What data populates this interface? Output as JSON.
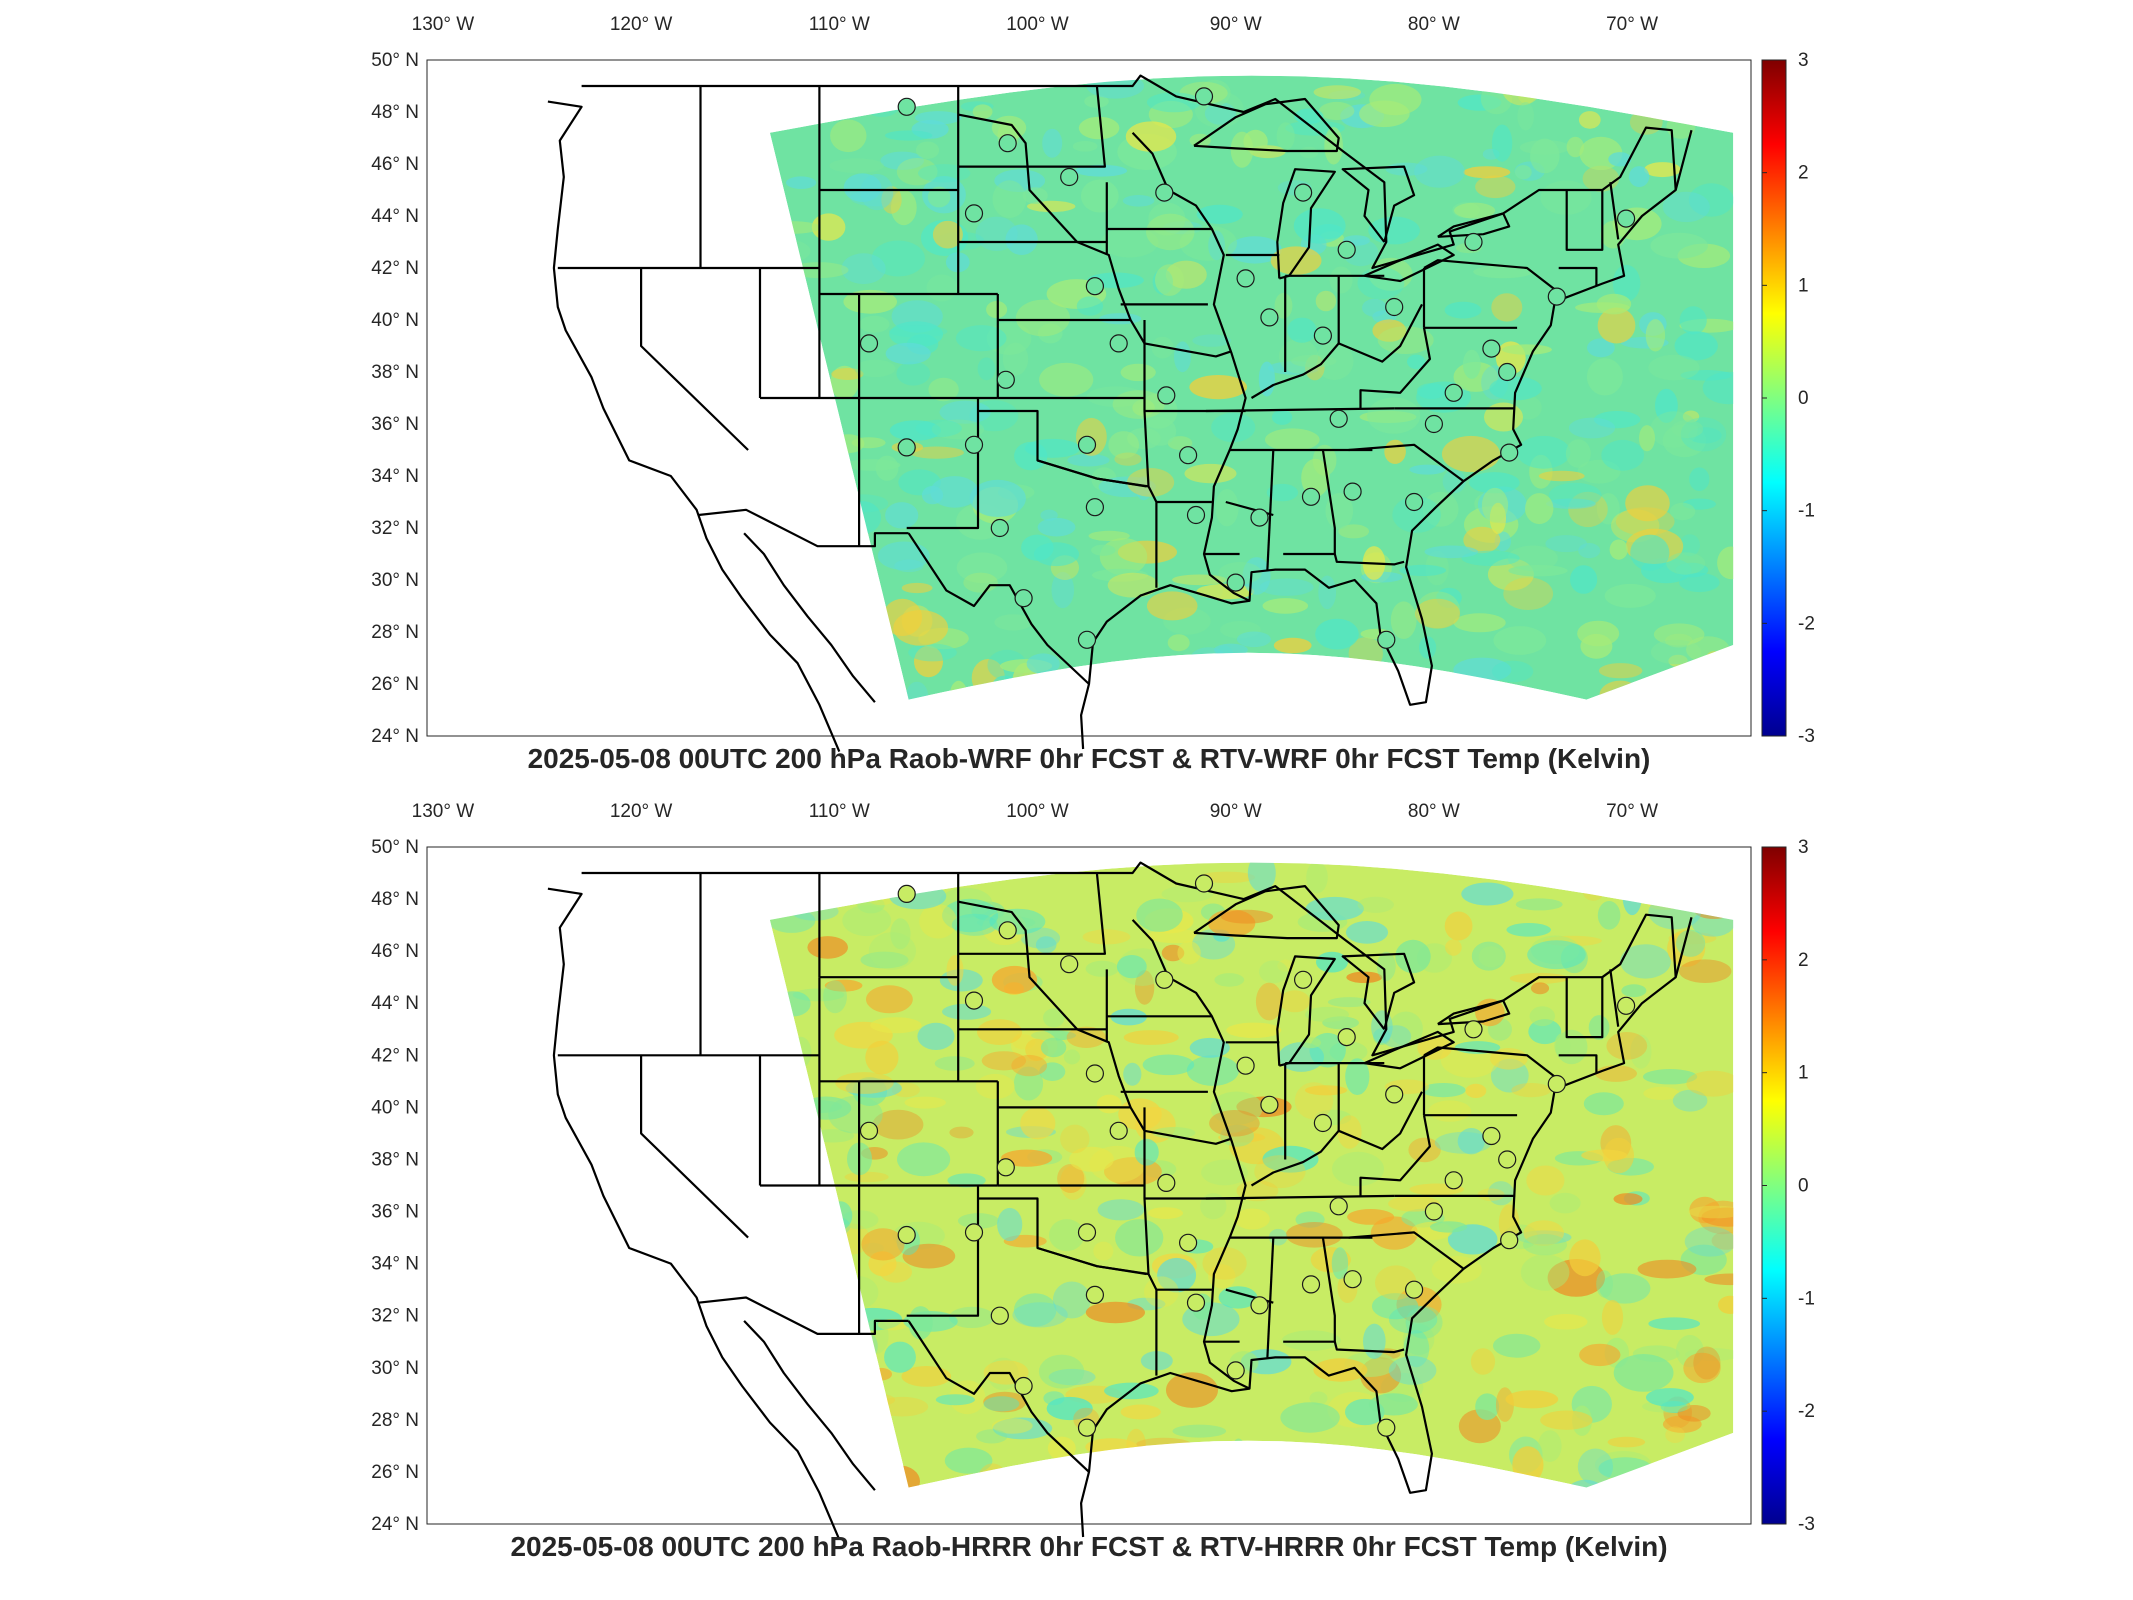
{
  "panels": [
    {
      "title": "2025-05-08 00UTC 200 hPa Raob-WRF 0hr FCST & RTV-WRF 0hr FCST Temp (Kelvin)",
      "field_tint": "#6fe3a2",
      "warm_patches": false
    },
    {
      "title": "2025-05-08 00UTC 200 hPa Raob-HRRR 0hr FCST & RTV-HRRR 0hr FCST Temp (Kelvin)",
      "field_tint": "#c8ec64",
      "warm_patches": true
    }
  ],
  "lon_labels": [
    "130° W",
    "120° W",
    "110° W",
    "100° W",
    "90° W",
    "80° W",
    "70° W"
  ],
  "lat_labels": [
    "50° N",
    "48° N",
    "46° N",
    "44° N",
    "42° N",
    "40° N",
    "38° N",
    "36° N",
    "34° N",
    "32° N",
    "30° N",
    "28° N",
    "26° N",
    "24° N"
  ],
  "colorbar": {
    "ticks": [
      "3",
      "2",
      "1",
      "0",
      "-1",
      "-2",
      "-3"
    ],
    "colormap": [
      "#7f0000",
      "#ff0000",
      "#ff8000",
      "#ffff00",
      "#80ff80",
      "#00ffff",
      "#0080ff",
      "#0000ff",
      "#00008f"
    ]
  },
  "stations": [
    [
      -106.6,
      48.2
    ],
    [
      -101.5,
      46.8
    ],
    [
      -98.4,
      45.5
    ],
    [
      -93.6,
      44.9
    ],
    [
      -91.6,
      48.6
    ],
    [
      -103.2,
      44.1
    ],
    [
      -97.1,
      41.3
    ],
    [
      -89.5,
      41.6
    ],
    [
      -88.3,
      40.1
    ],
    [
      -86.6,
      44.9
    ],
    [
      -84.4,
      42.7
    ],
    [
      -85.6,
      39.4
    ],
    [
      -82.0,
      40.5
    ],
    [
      -78.0,
      43.0
    ],
    [
      -70.3,
      43.9
    ],
    [
      -73.8,
      40.9
    ],
    [
      -77.1,
      38.9
    ],
    [
      -76.3,
      38.0
    ],
    [
      -79.0,
      37.2
    ],
    [
      -80.0,
      36.0
    ],
    [
      -84.8,
      36.2
    ],
    [
      -86.2,
      33.2
    ],
    [
      -84.1,
      33.4
    ],
    [
      -81.0,
      33.0
    ],
    [
      -76.2,
      34.9
    ],
    [
      -88.8,
      32.4
    ],
    [
      -92.0,
      32.5
    ],
    [
      -93.5,
      37.1
    ],
    [
      -95.9,
      39.1
    ],
    [
      -101.6,
      37.7
    ],
    [
      -108.5,
      39.1
    ],
    [
      -106.6,
      35.1
    ],
    [
      -103.2,
      35.2
    ],
    [
      -97.5,
      35.2
    ],
    [
      -92.4,
      34.8
    ],
    [
      -97.1,
      32.8
    ],
    [
      -101.9,
      32.0
    ],
    [
      -100.7,
      29.3
    ],
    [
      -97.5,
      27.7
    ],
    [
      -90.0,
      29.9
    ],
    [
      -82.4,
      27.7
    ]
  ]
}
